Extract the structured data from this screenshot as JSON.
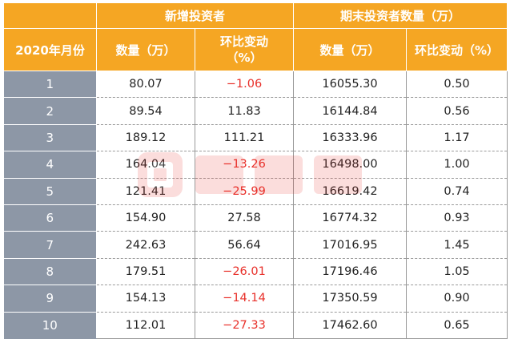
{
  "header": {
    "corner": "",
    "group_new": "新增投资者",
    "group_end": "期末投资者数量（万）",
    "col_month": "2020年月份",
    "col_new_count": "数量（万）",
    "col_new_change_l1": "环比变动",
    "col_new_change_l2": "（%）",
    "col_end_count": "数量（万）",
    "col_end_change": "环比变动（%）"
  },
  "rows": [
    {
      "month": "1",
      "new_count": "80.07",
      "new_change": "−1.06",
      "end_count": "16055.30",
      "end_change": "0.50"
    },
    {
      "month": "2",
      "new_count": "89.54",
      "new_change": "11.83",
      "end_count": "16144.84",
      "end_change": "0.56"
    },
    {
      "month": "3",
      "new_count": "189.12",
      "new_change": "111.21",
      "end_count": "16333.96",
      "end_change": "1.17"
    },
    {
      "month": "4",
      "new_count": "164.04",
      "new_change": "−13.26",
      "end_count": "16498.00",
      "end_change": "1.00"
    },
    {
      "month": "5",
      "new_count": "121.41",
      "new_change": "−25.99",
      "end_count": "16619.42",
      "end_change": "0.74"
    },
    {
      "month": "6",
      "new_count": "154.90",
      "new_change": "27.58",
      "end_count": "16774.32",
      "end_change": "0.93"
    },
    {
      "month": "7",
      "new_count": "242.63",
      "new_change": "56.64",
      "end_count": "17016.95",
      "end_change": "1.45"
    },
    {
      "month": "8",
      "new_count": "179.51",
      "new_change": "−26.01",
      "end_count": "17196.46",
      "end_change": "1.05"
    },
    {
      "month": "9",
      "new_count": "154.13",
      "new_change": "−14.14",
      "end_count": "17350.59",
      "end_change": "0.90"
    },
    {
      "month": "10",
      "new_count": "112.01",
      "new_change": "−27.33",
      "end_count": "17462.60",
      "end_change": "0.65"
    }
  ],
  "colors": {
    "header_bg": "#f5a623",
    "month_bg": "#8d97a6",
    "negative": "#e8302a",
    "text": "#222222"
  },
  "watermark": {
    "icon": "logo-watermark-icon"
  }
}
